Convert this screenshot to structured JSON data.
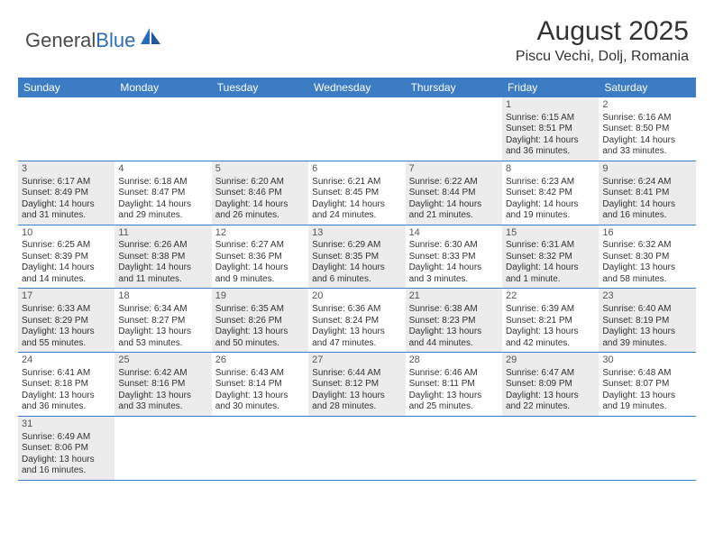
{
  "logo": {
    "text1": "General",
    "text2": "Blue"
  },
  "title": "August 2025",
  "location": "Piscu Vechi, Dolj, Romania",
  "colors": {
    "header_bg": "#3b7cc4",
    "header_text": "#ffffff",
    "shaded_bg": "#ececec",
    "border": "#3b7cc4",
    "logo_blue": "#2a6db8"
  },
  "day_headers": [
    "Sunday",
    "Monday",
    "Tuesday",
    "Wednesday",
    "Thursday",
    "Friday",
    "Saturday"
  ],
  "weeks": [
    [
      null,
      null,
      null,
      null,
      null,
      {
        "n": "1",
        "sr": "Sunrise: 6:15 AM",
        "ss": "Sunset: 8:51 PM",
        "d1": "Daylight: 14 hours",
        "d2": "and 36 minutes.",
        "sh": true
      },
      {
        "n": "2",
        "sr": "Sunrise: 6:16 AM",
        "ss": "Sunset: 8:50 PM",
        "d1": "Daylight: 14 hours",
        "d2": "and 33 minutes.",
        "sh": false
      }
    ],
    [
      {
        "n": "3",
        "sr": "Sunrise: 6:17 AM",
        "ss": "Sunset: 8:49 PM",
        "d1": "Daylight: 14 hours",
        "d2": "and 31 minutes.",
        "sh": true
      },
      {
        "n": "4",
        "sr": "Sunrise: 6:18 AM",
        "ss": "Sunset: 8:47 PM",
        "d1": "Daylight: 14 hours",
        "d2": "and 29 minutes.",
        "sh": false
      },
      {
        "n": "5",
        "sr": "Sunrise: 6:20 AM",
        "ss": "Sunset: 8:46 PM",
        "d1": "Daylight: 14 hours",
        "d2": "and 26 minutes.",
        "sh": true
      },
      {
        "n": "6",
        "sr": "Sunrise: 6:21 AM",
        "ss": "Sunset: 8:45 PM",
        "d1": "Daylight: 14 hours",
        "d2": "and 24 minutes.",
        "sh": false
      },
      {
        "n": "7",
        "sr": "Sunrise: 6:22 AM",
        "ss": "Sunset: 8:44 PM",
        "d1": "Daylight: 14 hours",
        "d2": "and 21 minutes.",
        "sh": true
      },
      {
        "n": "8",
        "sr": "Sunrise: 6:23 AM",
        "ss": "Sunset: 8:42 PM",
        "d1": "Daylight: 14 hours",
        "d2": "and 19 minutes.",
        "sh": false
      },
      {
        "n": "9",
        "sr": "Sunrise: 6:24 AM",
        "ss": "Sunset: 8:41 PM",
        "d1": "Daylight: 14 hours",
        "d2": "and 16 minutes.",
        "sh": true
      }
    ],
    [
      {
        "n": "10",
        "sr": "Sunrise: 6:25 AM",
        "ss": "Sunset: 8:39 PM",
        "d1": "Daylight: 14 hours",
        "d2": "and 14 minutes.",
        "sh": false
      },
      {
        "n": "11",
        "sr": "Sunrise: 6:26 AM",
        "ss": "Sunset: 8:38 PM",
        "d1": "Daylight: 14 hours",
        "d2": "and 11 minutes.",
        "sh": true
      },
      {
        "n": "12",
        "sr": "Sunrise: 6:27 AM",
        "ss": "Sunset: 8:36 PM",
        "d1": "Daylight: 14 hours",
        "d2": "and 9 minutes.",
        "sh": false
      },
      {
        "n": "13",
        "sr": "Sunrise: 6:29 AM",
        "ss": "Sunset: 8:35 PM",
        "d1": "Daylight: 14 hours",
        "d2": "and 6 minutes.",
        "sh": true
      },
      {
        "n": "14",
        "sr": "Sunrise: 6:30 AM",
        "ss": "Sunset: 8:33 PM",
        "d1": "Daylight: 14 hours",
        "d2": "and 3 minutes.",
        "sh": false
      },
      {
        "n": "15",
        "sr": "Sunrise: 6:31 AM",
        "ss": "Sunset: 8:32 PM",
        "d1": "Daylight: 14 hours",
        "d2": "and 1 minute.",
        "sh": true
      },
      {
        "n": "16",
        "sr": "Sunrise: 6:32 AM",
        "ss": "Sunset: 8:30 PM",
        "d1": "Daylight: 13 hours",
        "d2": "and 58 minutes.",
        "sh": false
      }
    ],
    [
      {
        "n": "17",
        "sr": "Sunrise: 6:33 AM",
        "ss": "Sunset: 8:29 PM",
        "d1": "Daylight: 13 hours",
        "d2": "and 55 minutes.",
        "sh": true
      },
      {
        "n": "18",
        "sr": "Sunrise: 6:34 AM",
        "ss": "Sunset: 8:27 PM",
        "d1": "Daylight: 13 hours",
        "d2": "and 53 minutes.",
        "sh": false
      },
      {
        "n": "19",
        "sr": "Sunrise: 6:35 AM",
        "ss": "Sunset: 8:26 PM",
        "d1": "Daylight: 13 hours",
        "d2": "and 50 minutes.",
        "sh": true
      },
      {
        "n": "20",
        "sr": "Sunrise: 6:36 AM",
        "ss": "Sunset: 8:24 PM",
        "d1": "Daylight: 13 hours",
        "d2": "and 47 minutes.",
        "sh": false
      },
      {
        "n": "21",
        "sr": "Sunrise: 6:38 AM",
        "ss": "Sunset: 8:23 PM",
        "d1": "Daylight: 13 hours",
        "d2": "and 44 minutes.",
        "sh": true
      },
      {
        "n": "22",
        "sr": "Sunrise: 6:39 AM",
        "ss": "Sunset: 8:21 PM",
        "d1": "Daylight: 13 hours",
        "d2": "and 42 minutes.",
        "sh": false
      },
      {
        "n": "23",
        "sr": "Sunrise: 6:40 AM",
        "ss": "Sunset: 8:19 PM",
        "d1": "Daylight: 13 hours",
        "d2": "and 39 minutes.",
        "sh": true
      }
    ],
    [
      {
        "n": "24",
        "sr": "Sunrise: 6:41 AM",
        "ss": "Sunset: 8:18 PM",
        "d1": "Daylight: 13 hours",
        "d2": "and 36 minutes.",
        "sh": false
      },
      {
        "n": "25",
        "sr": "Sunrise: 6:42 AM",
        "ss": "Sunset: 8:16 PM",
        "d1": "Daylight: 13 hours",
        "d2": "and 33 minutes.",
        "sh": true
      },
      {
        "n": "26",
        "sr": "Sunrise: 6:43 AM",
        "ss": "Sunset: 8:14 PM",
        "d1": "Daylight: 13 hours",
        "d2": "and 30 minutes.",
        "sh": false
      },
      {
        "n": "27",
        "sr": "Sunrise: 6:44 AM",
        "ss": "Sunset: 8:12 PM",
        "d1": "Daylight: 13 hours",
        "d2": "and 28 minutes.",
        "sh": true
      },
      {
        "n": "28",
        "sr": "Sunrise: 6:46 AM",
        "ss": "Sunset: 8:11 PM",
        "d1": "Daylight: 13 hours",
        "d2": "and 25 minutes.",
        "sh": false
      },
      {
        "n": "29",
        "sr": "Sunrise: 6:47 AM",
        "ss": "Sunset: 8:09 PM",
        "d1": "Daylight: 13 hours",
        "d2": "and 22 minutes.",
        "sh": true
      },
      {
        "n": "30",
        "sr": "Sunrise: 6:48 AM",
        "ss": "Sunset: 8:07 PM",
        "d1": "Daylight: 13 hours",
        "d2": "and 19 minutes.",
        "sh": false
      }
    ],
    [
      {
        "n": "31",
        "sr": "Sunrise: 6:49 AM",
        "ss": "Sunset: 8:06 PM",
        "d1": "Daylight: 13 hours",
        "d2": "and 16 minutes.",
        "sh": true
      },
      null,
      null,
      null,
      null,
      null,
      null
    ]
  ]
}
